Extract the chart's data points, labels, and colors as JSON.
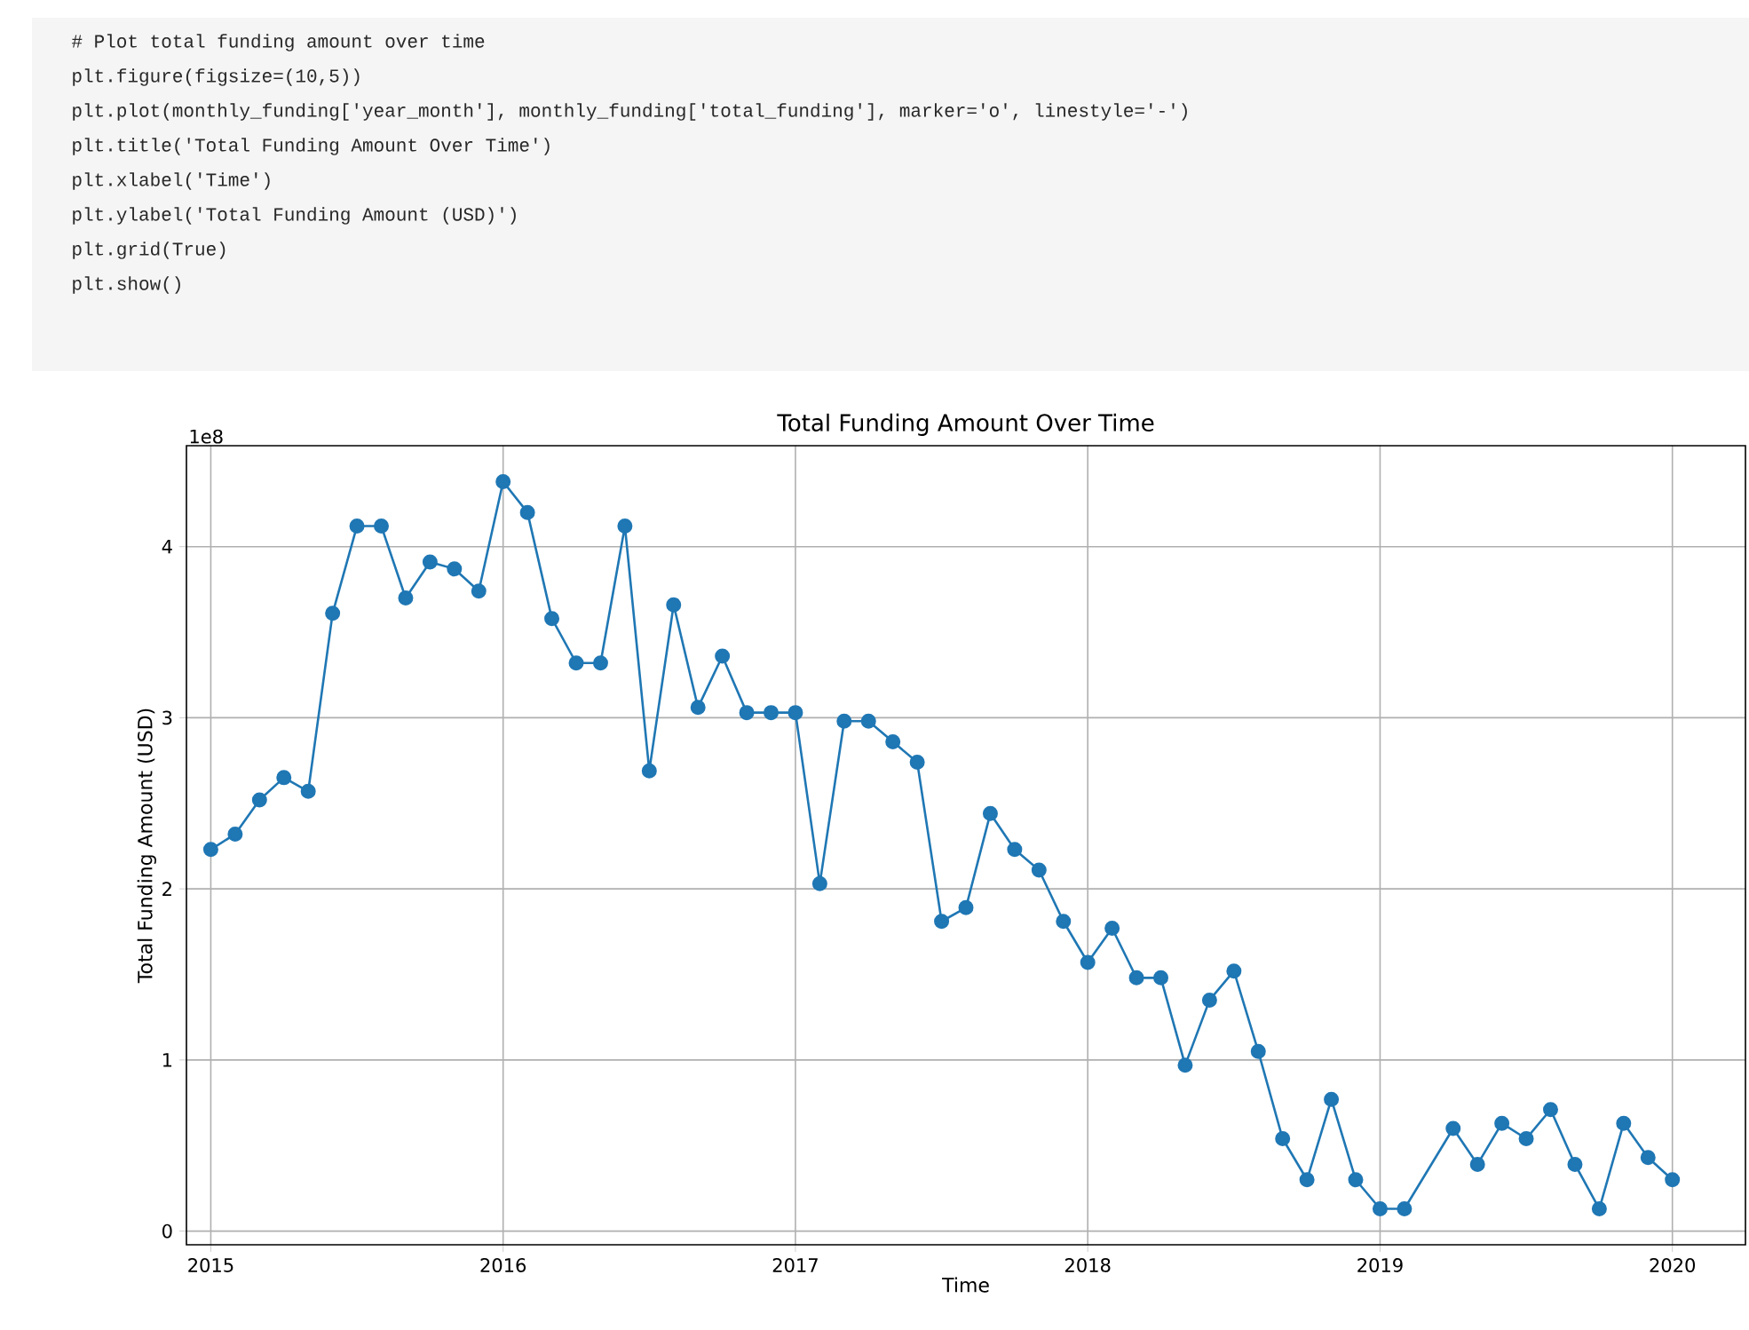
{
  "chart_data": {
    "type": "line",
    "title": "Total Funding Amount Over Time",
    "xlabel": "Time",
    "ylabel": "Total Funding Amount (USD)",
    "annotations": [
      "# Plot total funding amount over time",
      "plt.figure(figsize=(10,5))",
      "plt.plot(monthly_funding['year_month'], monthly_funding['total_funding'], marker='o', linestyle='-')",
      "plt.title('Total Funding Amount Over Time')",
      "plt.xlabel('Time')",
      "plt.ylabel('Total Funding Amount (USD)')",
      "plt.grid(True)",
      "plt.show()",
      "1e8"
    ],
    "x": [
      "2015-01",
      "2015-02",
      "2015-03",
      "2015-04",
      "2015-05",
      "2015-06",
      "2015-07",
      "2015-08",
      "2015-09",
      "2015-10",
      "2015-11",
      "2015-12",
      "2016-01",
      "2016-02",
      "2016-03",
      "2016-04",
      "2016-05",
      "2016-06",
      "2016-07",
      "2016-08",
      "2016-09",
      "2016-10",
      "2016-11",
      "2016-12",
      "2017-01",
      "2017-02",
      "2017-03",
      "2017-04",
      "2017-05",
      "2017-06",
      "2017-07",
      "2017-08",
      "2017-09",
      "2017-10",
      "2017-11",
      "2017-12",
      "2018-01",
      "2018-02",
      "2018-03",
      "2018-04",
      "2018-05",
      "2018-06",
      "2018-07",
      "2018-08",
      "2018-09",
      "2018-10",
      "2018-11",
      "2018-12",
      "2019-01",
      "2019-02",
      "2019-04",
      "2019-05",
      "2019-06",
      "2019-07",
      "2019-08",
      "2019-09",
      "2019-10",
      "2019-11",
      "2019-12",
      "2020-01"
    ],
    "series": [
      {
        "color": "#1f77b4",
        "values": [
          2.23,
          2.32,
          2.52,
          2.65,
          2.57,
          3.61,
          4.12,
          4.12,
          3.7,
          3.91,
          3.87,
          3.74,
          4.38,
          4.2,
          3.58,
          3.32,
          3.32,
          4.12,
          2.69,
          3.66,
          3.06,
          3.36,
          3.03,
          3.03,
          3.03,
          2.03,
          2.98,
          2.98,
          2.86,
          2.74,
          1.81,
          1.89,
          2.44,
          2.23,
          2.11,
          1.81,
          1.57,
          1.77,
          1.48,
          1.48,
          0.97,
          1.35,
          1.52,
          1.05,
          0.54,
          0.3,
          0.77,
          0.3,
          0.13,
          0.13,
          0.6,
          0.39,
          0.63,
          0.54,
          0.71,
          0.39,
          0.13,
          0.63,
          0.43,
          0.3
        ]
      }
    ],
    "xlim": [
      "2014-12",
      "2020-04"
    ],
    "xticks": [
      "2015",
      "2016",
      "2017",
      "2018",
      "2019",
      "2020"
    ],
    "ylim": [
      -0.08,
      4.59
    ],
    "yticks": [
      0,
      1,
      2,
      3,
      4
    ],
    "grid": true,
    "marker": "circle",
    "line_style": "solid"
  }
}
